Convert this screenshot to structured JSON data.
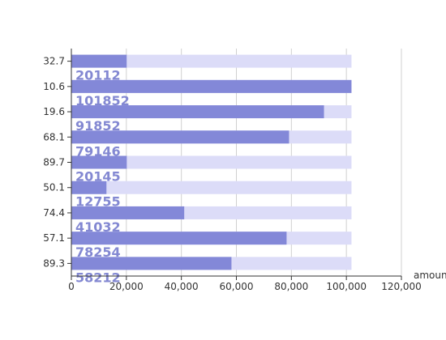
{
  "chart_data": {
    "type": "bar",
    "orientation": "horizontal",
    "categories": [
      "89.3",
      "57.1",
      "74.4",
      "50.1",
      "89.7",
      "68.1",
      "19.6",
      "10.6",
      "32.7"
    ],
    "series": [
      {
        "values": [
          58212,
          78254,
          41032,
          12755,
          20145,
          79146,
          91852,
          101852,
          20112
        ]
      }
    ],
    "background_value": 101852,
    "xlabel": "amount",
    "ylabel": "",
    "xlim": [
      0,
      120000
    ],
    "xticks": [
      "0",
      "20,000",
      "40,000",
      "60,000",
      "80,000",
      "100,000",
      "120,000"
    ],
    "grid": true,
    "legend": "none",
    "colors": {
      "bar": "#8388d8",
      "background": "#dcdcf8",
      "label": "#8388d2"
    }
  }
}
